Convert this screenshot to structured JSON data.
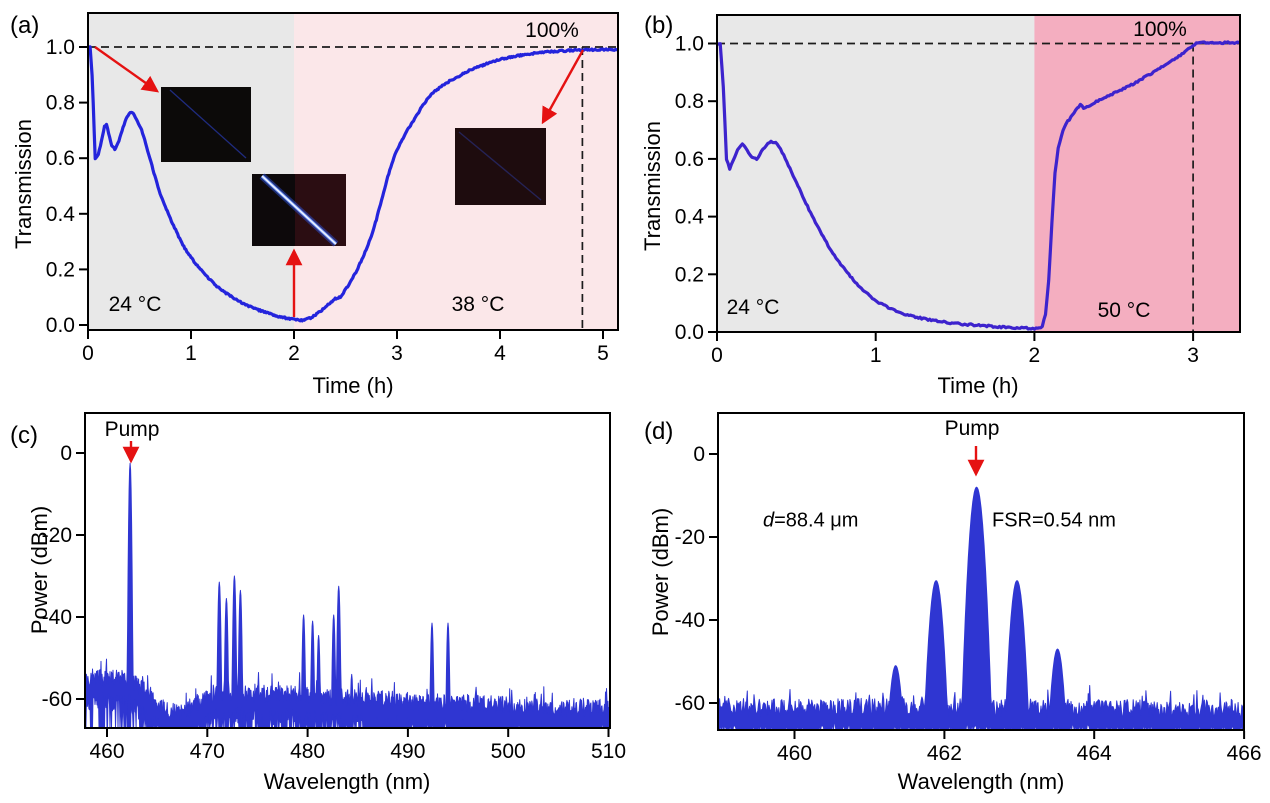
{
  "colors": {
    "curve_a": "#2424dc",
    "curve_b": "#3d23cd",
    "spectrum": "#2f36d2",
    "region_grey": "#e8e8e8",
    "region_pink_light": "#fbe7e9",
    "region_pink_dark": "#f4aec0",
    "dashed_line": "#1c1c1c",
    "arrow_red": "#e51212",
    "frame": "#000000"
  },
  "panels": {
    "a": {
      "label": "(a)",
      "x_label": "Time (h)",
      "y_label": "Transmission",
      "annotations": {
        "pct": "100%",
        "temp_left": "24 °C",
        "temp_right": "38 °C"
      },
      "insets": [
        {
          "name": "fiber-photo-dark"
        },
        {
          "name": "fiber-photo-bright-line"
        },
        {
          "name": "fiber-photo-dim-red"
        }
      ]
    },
    "b": {
      "label": "(b)",
      "x_label": "Time (h)",
      "y_label": "Transmission",
      "annotations": {
        "pct": "100%",
        "temp_left": "24 °C",
        "temp_right": "50 °C"
      }
    },
    "c": {
      "label": "(c)",
      "x_label": "Wavelength (nm)",
      "y_label": "Power (dBm)",
      "annotations": {
        "pump": "Pump"
      }
    },
    "d": {
      "label": "(d)",
      "x_label": "Wavelength (nm)",
      "y_label": "Power (dBm)",
      "annotations": {
        "pump": "Pump",
        "d_var": "d",
        "d_rest": "=88.4 μm",
        "fsr": "FSR=0.54 nm"
      }
    }
  },
  "chart_data": [
    {
      "id": "a",
      "type": "line",
      "title": "",
      "xlabel": "Time (h)",
      "ylabel": "Transmission",
      "xlim": [
        0,
        5.15
      ],
      "ylim": [
        0,
        1.12
      ],
      "x_ticks": [
        0,
        1,
        2,
        3,
        4,
        5
      ],
      "y_ticks": [
        "0.0",
        "0.2",
        "0.4",
        "0.6",
        "0.8",
        "1.0"
      ],
      "y_tick_values": [
        0,
        0.2,
        0.4,
        0.6,
        0.8,
        1.0
      ],
      "regions": [
        {
          "label": "24 °C",
          "t_range": [
            0,
            2
          ],
          "color_key": "region_grey"
        },
        {
          "label": "38 °C",
          "t_range": [
            2,
            5.15
          ],
          "color_key": "region_pink_light"
        }
      ],
      "reference": {
        "horizontal_value": 1.0,
        "horizontal_label": "100%",
        "vertical_time": 4.8
      },
      "series": [
        {
          "name": "transmission",
          "points": [
            [
              0,
              1.0
            ],
            [
              0.02,
              1.0
            ],
            [
              0.04,
              0.9
            ],
            [
              0.07,
              0.597
            ],
            [
              0.1,
              0.615
            ],
            [
              0.13,
              0.66
            ],
            [
              0.16,
              0.715
            ],
            [
              0.18,
              0.72
            ],
            [
              0.2,
              0.69
            ],
            [
              0.23,
              0.645
            ],
            [
              0.26,
              0.632
            ],
            [
              0.3,
              0.66
            ],
            [
              0.34,
              0.71
            ],
            [
              0.38,
              0.75
            ],
            [
              0.41,
              0.763
            ],
            [
              0.44,
              0.76
            ],
            [
              0.48,
              0.735
            ],
            [
              0.52,
              0.7
            ],
            [
              0.56,
              0.655
            ],
            [
              0.6,
              0.6
            ],
            [
              0.65,
              0.535
            ],
            [
              0.7,
              0.472
            ],
            [
              0.75,
              0.425
            ],
            [
              0.8,
              0.383
            ],
            [
              0.85,
              0.342
            ],
            [
              0.9,
              0.303
            ],
            [
              0.95,
              0.27
            ],
            [
              1.0,
              0.243
            ],
            [
              1.05,
              0.218
            ],
            [
              1.1,
              0.196
            ],
            [
              1.15,
              0.176
            ],
            [
              1.2,
              0.157
            ],
            [
              1.25,
              0.14
            ],
            [
              1.3,
              0.125
            ],
            [
              1.35,
              0.112
            ],
            [
              1.4,
              0.1
            ],
            [
              1.45,
              0.089
            ],
            [
              1.5,
              0.079
            ],
            [
              1.55,
              0.07
            ],
            [
              1.6,
              0.062
            ],
            [
              1.65,
              0.055
            ],
            [
              1.7,
              0.048
            ],
            [
              1.75,
              0.042
            ],
            [
              1.8,
              0.036
            ],
            [
              1.85,
              0.031
            ],
            [
              1.9,
              0.027
            ],
            [
              1.95,
              0.023
            ],
            [
              2.0,
              0.019
            ],
            [
              2.05,
              0.017
            ],
            [
              2.1,
              0.018
            ],
            [
              2.15,
              0.024
            ],
            [
              2.2,
              0.034
            ],
            [
              2.25,
              0.048
            ],
            [
              2.3,
              0.062
            ],
            [
              2.35,
              0.08
            ],
            [
              2.4,
              0.094
            ],
            [
              2.45,
              0.1
            ],
            [
              2.5,
              0.127
            ],
            [
              2.55,
              0.155
            ],
            [
              2.6,
              0.19
            ],
            [
              2.65,
              0.228
            ],
            [
              2.7,
              0.27
            ],
            [
              2.75,
              0.32
            ],
            [
              2.8,
              0.38
            ],
            [
              2.85,
              0.45
            ],
            [
              2.9,
              0.52
            ],
            [
              2.95,
              0.58
            ],
            [
              3.0,
              0.63
            ],
            [
              3.05,
              0.665
            ],
            [
              3.1,
              0.7
            ],
            [
              3.15,
              0.73
            ],
            [
              3.2,
              0.76
            ],
            [
              3.25,
              0.79
            ],
            [
              3.3,
              0.815
            ],
            [
              3.35,
              0.835
            ],
            [
              3.4,
              0.85
            ],
            [
              3.45,
              0.863
            ],
            [
              3.5,
              0.875
            ],
            [
              3.6,
              0.895
            ],
            [
              3.7,
              0.915
            ],
            [
              3.8,
              0.93
            ],
            [
              3.9,
              0.943
            ],
            [
              4.0,
              0.955
            ],
            [
              4.1,
              0.963
            ],
            [
              4.2,
              0.97
            ],
            [
              4.3,
              0.976
            ],
            [
              4.4,
              0.98
            ],
            [
              4.5,
              0.984
            ],
            [
              4.6,
              0.986
            ],
            [
              4.7,
              0.988
            ],
            [
              4.8,
              0.99
            ],
            [
              4.9,
              0.99
            ],
            [
              5.0,
              0.991
            ],
            [
              5.15,
              0.99
            ]
          ]
        }
      ]
    },
    {
      "id": "b",
      "type": "line",
      "title": "",
      "xlabel": "Time (h)",
      "ylabel": "Transmission",
      "xlim": [
        0,
        3.3
      ],
      "ylim": [
        0,
        1.1
      ],
      "x_ticks": [
        0,
        1,
        2,
        3
      ],
      "y_ticks": [
        "0.0",
        "0.2",
        "0.4",
        "0.6",
        "0.8",
        "1.0"
      ],
      "y_tick_values": [
        0,
        0.2,
        0.4,
        0.6,
        0.8,
        1.0
      ],
      "regions": [
        {
          "label": "24 °C",
          "t_range": [
            0,
            2
          ],
          "color_key": "region_grey"
        },
        {
          "label": "50 °C",
          "t_range": [
            2,
            3.3
          ],
          "color_key": "region_pink_dark"
        }
      ],
      "reference": {
        "horizontal_value": 1.0,
        "horizontal_label": "100%",
        "vertical_time": 3.0
      },
      "series": [
        {
          "name": "transmission",
          "points": [
            [
              0,
              1.0
            ],
            [
              0.02,
              1.0
            ],
            [
              0.04,
              0.85
            ],
            [
              0.06,
              0.6
            ],
            [
              0.08,
              0.565
            ],
            [
              0.1,
              0.59
            ],
            [
              0.13,
              0.635
            ],
            [
              0.16,
              0.652
            ],
            [
              0.19,
              0.63
            ],
            [
              0.22,
              0.605
            ],
            [
              0.25,
              0.598
            ],
            [
              0.28,
              0.625
            ],
            [
              0.31,
              0.648
            ],
            [
              0.34,
              0.66
            ],
            [
              0.37,
              0.655
            ],
            [
              0.4,
              0.635
            ],
            [
              0.43,
              0.6
            ],
            [
              0.46,
              0.565
            ],
            [
              0.5,
              0.52
            ],
            [
              0.54,
              0.47
            ],
            [
              0.58,
              0.425
            ],
            [
              0.62,
              0.38
            ],
            [
              0.66,
              0.34
            ],
            [
              0.7,
              0.3
            ],
            [
              0.74,
              0.266
            ],
            [
              0.78,
              0.235
            ],
            [
              0.82,
              0.205
            ],
            [
              0.86,
              0.18
            ],
            [
              0.9,
              0.157
            ],
            [
              0.94,
              0.137
            ],
            [
              0.98,
              0.118
            ],
            [
              1.02,
              0.102
            ],
            [
              1.06,
              0.09
            ],
            [
              1.1,
              0.079
            ],
            [
              1.15,
              0.068
            ],
            [
              1.2,
              0.059
            ],
            [
              1.25,
              0.052
            ],
            [
              1.3,
              0.046
            ],
            [
              1.35,
              0.041
            ],
            [
              1.4,
              0.037
            ],
            [
              1.45,
              0.033
            ],
            [
              1.5,
              0.03
            ],
            [
              1.55,
              0.027
            ],
            [
              1.6,
              0.025
            ],
            [
              1.65,
              0.023
            ],
            [
              1.7,
              0.021
            ],
            [
              1.75,
              0.019
            ],
            [
              1.8,
              0.017
            ],
            [
              1.85,
              0.016
            ],
            [
              1.9,
              0.014
            ],
            [
              1.95,
              0.013
            ],
            [
              2.0,
              0.012
            ],
            [
              2.03,
              0.012
            ],
            [
              2.05,
              0.02
            ],
            [
              2.07,
              0.06
            ],
            [
              2.09,
              0.18
            ],
            [
              2.11,
              0.38
            ],
            [
              2.13,
              0.55
            ],
            [
              2.15,
              0.64
            ],
            [
              2.18,
              0.7
            ],
            [
              2.21,
              0.73
            ],
            [
              2.24,
              0.75
            ],
            [
              2.27,
              0.775
            ],
            [
              2.29,
              0.79
            ],
            [
              2.31,
              0.777
            ],
            [
              2.34,
              0.78
            ],
            [
              2.38,
              0.795
            ],
            [
              2.42,
              0.806
            ],
            [
              2.46,
              0.817
            ],
            [
              2.5,
              0.827
            ],
            [
              2.55,
              0.84
            ],
            [
              2.6,
              0.853
            ],
            [
              2.65,
              0.868
            ],
            [
              2.7,
              0.885
            ],
            [
              2.75,
              0.9
            ],
            [
              2.8,
              0.917
            ],
            [
              2.85,
              0.935
            ],
            [
              2.9,
              0.952
            ],
            [
              2.95,
              0.97
            ],
            [
              3.0,
              0.995
            ],
            [
              3.03,
              1.002
            ],
            [
              3.06,
              1.003
            ],
            [
              3.1,
              1.002
            ],
            [
              3.15,
              1.002
            ],
            [
              3.2,
              1.003
            ],
            [
              3.25,
              1.002
            ],
            [
              3.3,
              1.002
            ]
          ]
        }
      ]
    },
    {
      "id": "c",
      "type": "line",
      "title": "",
      "xlabel": "Wavelength (nm)",
      "ylabel": "Power (dBm)",
      "xlim": [
        457.8,
        510.15
      ],
      "ylim": [
        -67,
        10
      ],
      "x_ticks": [
        460,
        470,
        480,
        490,
        500,
        510
      ],
      "y_ticks": [
        "0",
        "-20",
        "-40",
        "-60"
      ],
      "y_tick_values": [
        0,
        -20,
        -40,
        -60
      ],
      "pump": {
        "wavelength_nm": 462.3,
        "power_dbm": -2.5
      },
      "peaks": [
        [
          462.3,
          -2.5
        ],
        [
          471.2,
          -31.5
        ],
        [
          471.9,
          -35.5
        ],
        [
          472.7,
          -30.0
        ],
        [
          473.3,
          -33.5
        ],
        [
          479.6,
          -39.5
        ],
        [
          480.5,
          -41.0
        ],
        [
          481.1,
          -44.5
        ],
        [
          482.6,
          -39.5
        ],
        [
          483.1,
          -32.5
        ],
        [
          484.4,
          -54.0
        ],
        [
          492.4,
          -41.5
        ],
        [
          494.0,
          -41.5
        ]
      ],
      "noise_floor": [
        [
          457.8,
          -55.0
        ],
        [
          460,
          -54.8
        ],
        [
          462,
          -55.2
        ],
        [
          463.2,
          -57.0
        ],
        [
          464.5,
          -59.5
        ],
        [
          465.5,
          -62.0
        ],
        [
          466.5,
          -63.5
        ],
        [
          468,
          -63.0
        ],
        [
          469.3,
          -60.5
        ],
        [
          470.5,
          -58.8
        ],
        [
          473,
          -58.5
        ],
        [
          476,
          -58.6
        ],
        [
          480,
          -59.2
        ],
        [
          484,
          -59.8
        ],
        [
          488,
          -60.2
        ],
        [
          492,
          -60.8
        ],
        [
          496,
          -61.2
        ],
        [
          500,
          -61.5
        ],
        [
          505,
          -62.0
        ],
        [
          510.15,
          -62.2
        ]
      ],
      "deep_spike_zone": [
        463.8,
        470.2
      ]
    },
    {
      "id": "d",
      "type": "line",
      "title": "",
      "xlabel": "Wavelength (nm)",
      "ylabel": "Power (dBm)",
      "xlim": [
        458.98,
        466.0
      ],
      "ylim": [
        -66.5,
        10
      ],
      "x_ticks": [
        460,
        462,
        464,
        466
      ],
      "y_ticks": [
        "0",
        "-20",
        "-40",
        "-60"
      ],
      "y_tick_values": [
        0,
        -20,
        -40,
        -60
      ],
      "pump": {
        "wavelength_nm": 462.43,
        "power_dbm": -8.0
      },
      "fsr_nm": 0.54,
      "cavity_length_um": 88.4,
      "peaks": [
        [
          461.35,
          -51.0
        ],
        [
          461.89,
          -30.5
        ],
        [
          462.43,
          -8.0
        ],
        [
          462.97,
          -30.5
        ],
        [
          463.51,
          -47.0
        ]
      ],
      "noise_floor": [
        [
          458.98,
          -61.0
        ],
        [
          462.4,
          -61.2
        ],
        [
          466.0,
          -61.4
        ]
      ],
      "deep_spike_zone": [
        458.98,
        466.0
      ]
    }
  ]
}
